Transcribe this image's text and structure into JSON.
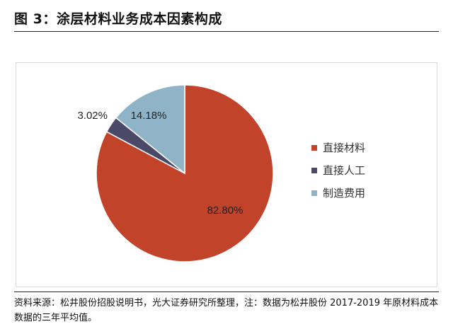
{
  "header": {
    "title": "图 3：涂层材料业务成本因素构成"
  },
  "chart_data": {
    "type": "pie",
    "title": "",
    "slices": [
      {
        "label": "直接材料",
        "value": 82.8,
        "display": "82.80%",
        "color": "#c0432a"
      },
      {
        "label": "直接人工",
        "value": 3.02,
        "display": "3.02%",
        "color": "#4a4a68"
      },
      {
        "label": "制造费用",
        "value": 14.18,
        "display": "14.18%",
        "color": "#8fb4c8"
      }
    ],
    "legend_position": "right",
    "start": "12 o'clock",
    "direction": "clockwise"
  },
  "footer": {
    "source": "资料来源：松井股份招股说明书，光大证券研究所整理，注：数据为松井股份 2017-2019 年原材料成本数据的三年平均值。"
  }
}
